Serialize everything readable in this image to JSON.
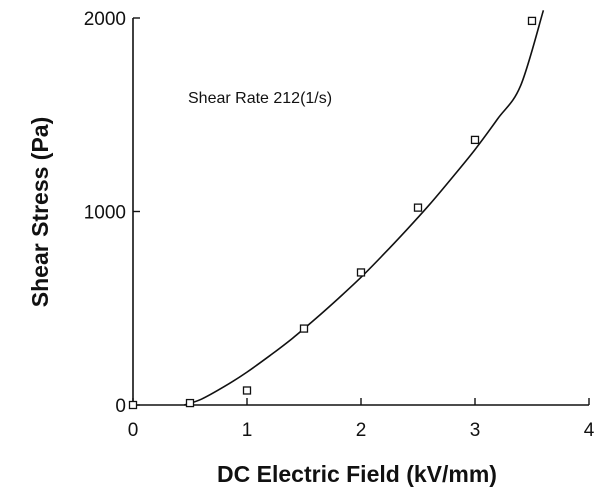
{
  "chart_data": {
    "type": "scatter",
    "title": "",
    "xlabel": "DC Electric Field (kV/mm)",
    "ylabel": "Shear Stress (Pa)",
    "xlim": [
      0,
      4
    ],
    "ylim": [
      0,
      2000
    ],
    "xticks": [
      0,
      1,
      2,
      3,
      4
    ],
    "yticks": [
      0,
      1000,
      2000
    ],
    "xtick_labels": [
      "0",
      "1",
      "2",
      "3",
      "4"
    ],
    "ytick_labels": [
      "0",
      "1000",
      "2000"
    ],
    "grid": false,
    "legend": "none",
    "annotation": "Shear Rate  212(1/s)",
    "series": [
      {
        "kind": "scatter",
        "marker": "open-square",
        "x": [
          0,
          0.5,
          1.0,
          1.5,
          2.0,
          2.5,
          3.0,
          3.5
        ],
        "y": [
          0,
          10,
          75,
          395,
          685,
          1020,
          1370,
          1985
        ]
      },
      {
        "kind": "fit-curve",
        "x": [
          0.45,
          0.6,
          0.8,
          1.0,
          1.2,
          1.4,
          1.6,
          1.8,
          2.0,
          2.2,
          2.4,
          2.6,
          2.8,
          3.0,
          3.2,
          3.4,
          3.6
        ],
        "y": [
          0,
          30,
          95,
          170,
          255,
          345,
          445,
          550,
          660,
          780,
          905,
          1035,
          1175,
          1320,
          1480,
          1650,
          2040
        ]
      }
    ],
    "colors": {
      "ink": "#111111",
      "background": "#ffffff"
    }
  }
}
